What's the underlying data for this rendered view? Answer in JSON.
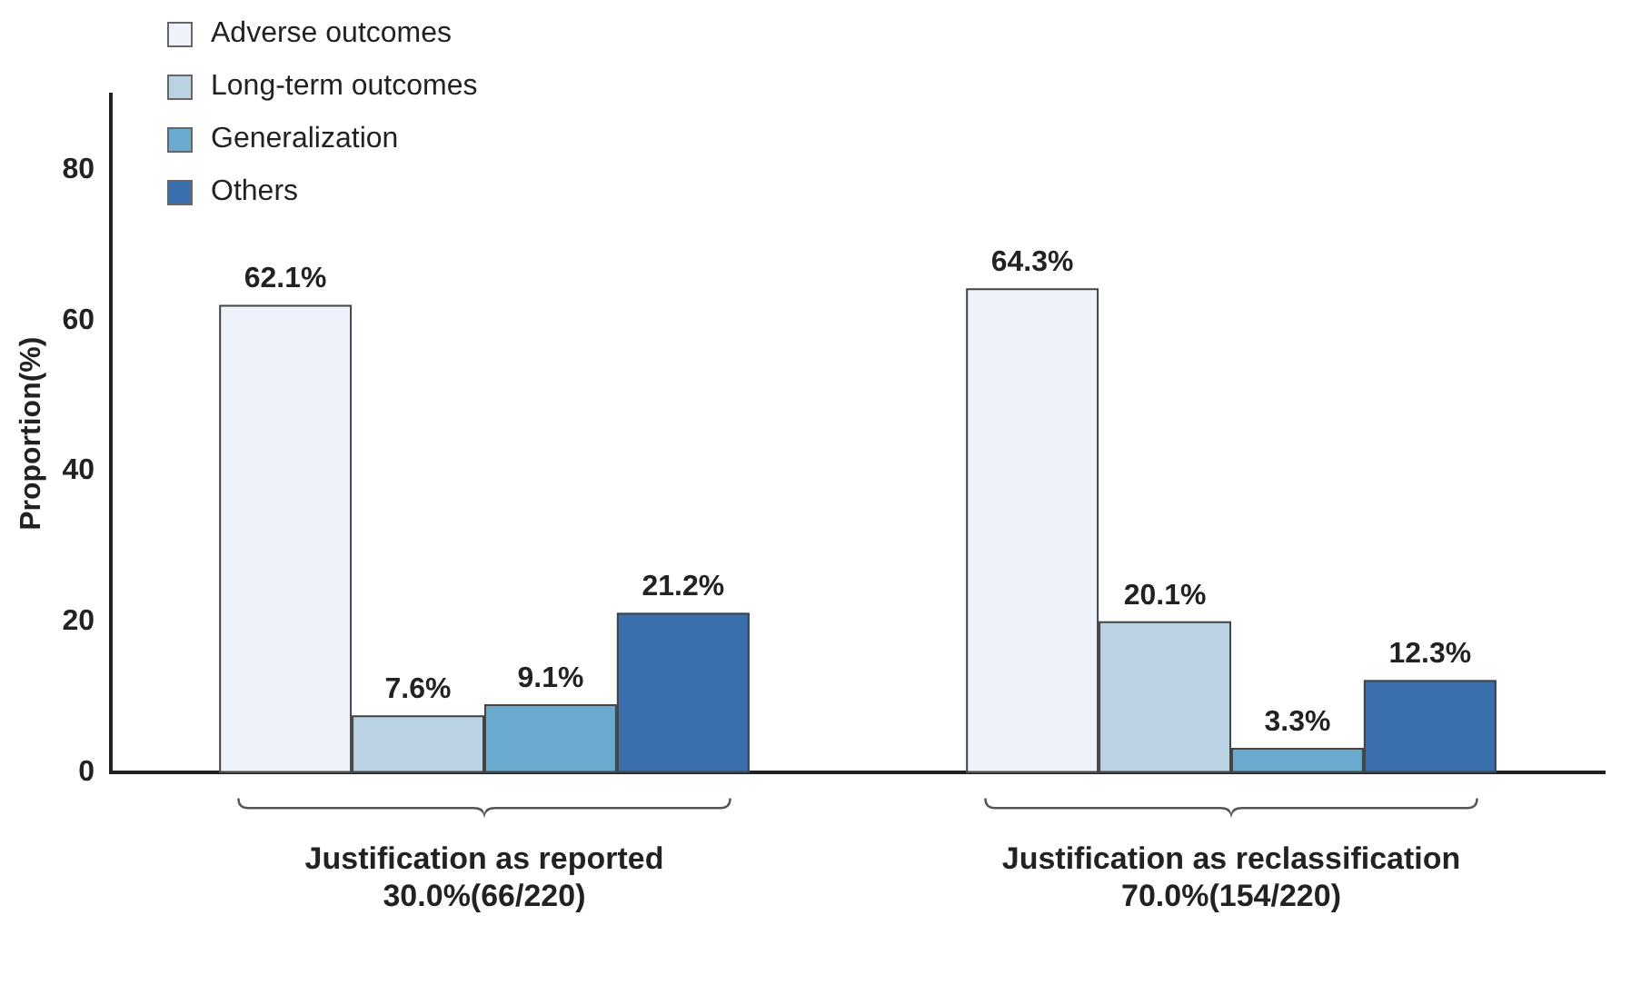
{
  "chart_data": {
    "type": "bar",
    "ylabel": "Proportion(%)",
    "categories": [
      "Justification as reported\n30.0%(66/220)",
      "Justification as reclassification\n70.0%(154/220)"
    ],
    "series": [
      {
        "name": "Adverse outcomes",
        "color": "#eef2fb",
        "values": [
          62.1,
          64.3
        ],
        "value_labels": [
          "62.1%",
          "64.3%"
        ]
      },
      {
        "name": "Long-term outcomes",
        "color": "#b9d3e3",
        "values": [
          7.6,
          20.1
        ],
        "value_labels": [
          "7.6%",
          "20.1%"
        ]
      },
      {
        "name": "Generalization",
        "color": "#6aaacf",
        "values": [
          9.1,
          3.3
        ],
        "value_labels": [
          "9.1%",
          "3.3%"
        ]
      },
      {
        "name": "Others",
        "color": "#3a6fae",
        "values": [
          21.2,
          12.3
        ],
        "value_labels": [
          "21.2%",
          "12.3%"
        ]
      }
    ],
    "ylim": [
      0,
      90
    ],
    "yticks": [
      0,
      20,
      40,
      60,
      80
    ],
    "grid": false,
    "legend": "top left"
  }
}
